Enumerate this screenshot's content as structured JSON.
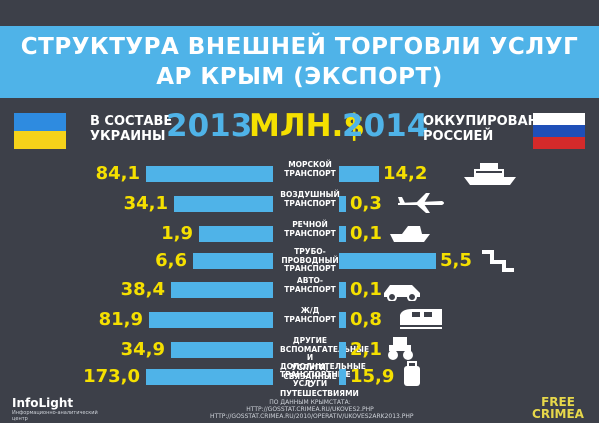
{
  "title": {
    "line1": "СТРУКТУРА ВНЕШНЕЙ ТОРГОВЛИ УСЛУГ",
    "line2": "АР КРЫМ (ЭКСПОРТ)"
  },
  "header": {
    "left_label": "В СОСТАВЕ\nУКРАИНЫ",
    "right_label": "ОККУПИРОВАН\nРОССИЕЙ",
    "year_left": "2013",
    "year_right": "2014",
    "unit": "МЛН.$"
  },
  "colors": {
    "bar": "#4fb3e8",
    "value": "#f5e000",
    "background": "#3d4049"
  },
  "chart_data": {
    "type": "bar",
    "title": "СТРУКТУРА ВНЕШНЕЙ ТОРГОВЛИ УСЛУГ АР КРЫМ (ЭКСПОРТ)",
    "unit": "МЛН.$",
    "categories": [
      "МОРСКОЙ\nТРАНСПОРТ",
      "ВОЗДУШНЫЙ\nТРАНСПОРТ",
      "РЕЧНОЙ\nТРАНСПОРТ",
      "ТРУБО-\nПРОВОДНЫЙ\nТРАНСПОРТ",
      "АВТО-\nТРАНСПОРТ",
      "Ж/Д\nТРАНСПОРТ",
      "ДРУГИЕ\nВСПОМАГАТЕЛЬНЫЕ И\nДОПОЛНИТЕЛЬНЫЕ\nТРАНСПОРТНЫЕ УСЛУГИ",
      "УСЛУГИ,\nСВЯЗАННЫЕ С\nПУТЕШЕСТВИЯМИ"
    ],
    "icons": [
      "ship-icon",
      "airplane-icon",
      "boat-icon",
      "pipeline-icon",
      "car-icon",
      "train-icon",
      "tractor-icon",
      "luggage-icon"
    ],
    "series": [
      {
        "name": "2013",
        "labels": [
          "84,1",
          "34,1",
          "1,9",
          "6,6",
          "38,4",
          "81,9",
          "34,9",
          "173,0"
        ],
        "values": [
          84.1,
          34.1,
          1.9,
          6.6,
          38.4,
          81.9,
          34.9,
          173.0
        ]
      },
      {
        "name": "2014",
        "labels": [
          "14,2",
          "0,3",
          "0,1",
          "5,5",
          "0,1",
          "0,8",
          "2,1",
          "15,9"
        ],
        "values": [
          14.2,
          0.3,
          0.1,
          5.5,
          0.1,
          0.8,
          2.1,
          15.9
        ]
      }
    ],
    "bar_display": {
      "left_fraction": [
        1.0,
        0.78,
        0.58,
        0.63,
        0.8,
        0.98,
        0.8,
        1.0
      ],
      "right_fraction": [
        0.38,
        0.07,
        0.07,
        0.93,
        0.07,
        0.07,
        0.07,
        0.07
      ]
    }
  },
  "footer": {
    "sources": "ПО ДАННЫМ КРЫМСТАТА: HTTP://GOSSTAT.CRIMEA.RU/UKOVES2.PHP\nHTTP://GOSSTAT.CRIMEA.RU/2010/OPERATIV/UKOVES2ARK2013.PHP",
    "left_logo": "InfoLight",
    "left_logo_sub": "Информационно-аналитический\nцентр",
    "right_logo": "FREE\nCRIMEA"
  }
}
